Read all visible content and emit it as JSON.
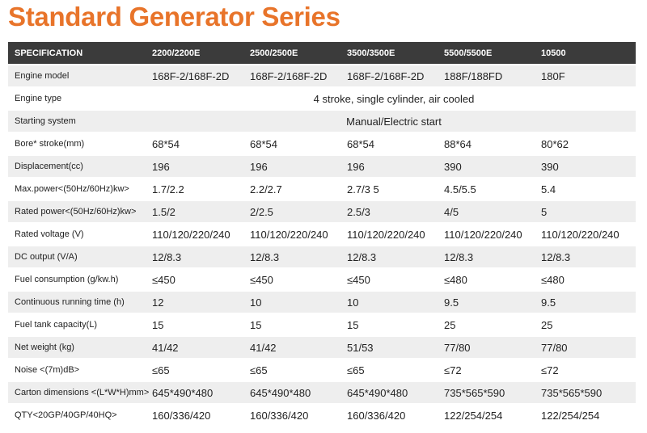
{
  "header": {
    "title": "Standard Generator Series"
  },
  "table": {
    "columns": [
      "SPECIFICATION",
      "2200/2200E",
      "2500/2500E",
      "3500/3500E",
      "5500/5500E",
      "10500"
    ],
    "rows": [
      [
        "Engine model",
        "168F-2/168F-2D",
        "168F-2/168F-2D",
        "168F-2/168F-2D",
        "188F/188FD",
        "180F"
      ],
      [
        "Engine type",
        "4 stroke, single cylinder, air cooled"
      ],
      [
        "Starting system",
        "Manual/Electric start"
      ],
      [
        "Bore* stroke(mm)",
        "68*54",
        "68*54",
        "68*54",
        "88*64",
        "80*62"
      ],
      [
        "Displacement(cc)",
        "196",
        "196",
        "196",
        "390",
        "390"
      ],
      [
        "Max.power<(50Hz/60Hz)kw>",
        "1.7/2.2",
        "2.2/2.7",
        "2.7/3 5",
        "4.5/5.5",
        "5.4"
      ],
      [
        "Rated power<(50Hz/60Hz)kw>",
        "1.5/2",
        "2/2.5",
        "2.5/3",
        "4/5",
        "5"
      ],
      [
        "Rated voltage (V)",
        "110/120/220/240",
        "110/120/220/240",
        "110/120/220/240",
        "110/120/220/240",
        "110/120/220/240"
      ],
      [
        "DC output (V/A)",
        "12/8.3",
        "12/8.3",
        "12/8.3",
        "12/8.3",
        "12/8.3"
      ],
      [
        "Fuel consumption (g/kw.h)",
        "≤450",
        "≤450",
        "≤450",
        "≤480",
        "≤480"
      ],
      [
        "Continuous running time (h)",
        "12",
        "10",
        "10",
        "9.5",
        "9.5"
      ],
      [
        "Fuel tank capacity(L)",
        "15",
        "15",
        "15",
        "25",
        "25"
      ],
      [
        "Net weight (kg)",
        "41/42",
        "41/42",
        "51/53",
        "77/80",
        "77/80"
      ],
      [
        "Noise <(7m)dB>",
        "≤65",
        "≤65",
        "≤65",
        "≤72",
        "≤72"
      ],
      [
        "Carton dimensions <(L*W*H)mm>",
        "645*490*480",
        "645*490*480",
        "645*490*480",
        "735*565*590",
        "735*565*590"
      ],
      [
        "QTY<20GP/40GP/40HQ>",
        "160/336/420",
        "160/336/420",
        "160/336/420",
        "122/254/254",
        "122/254/254"
      ]
    ]
  }
}
